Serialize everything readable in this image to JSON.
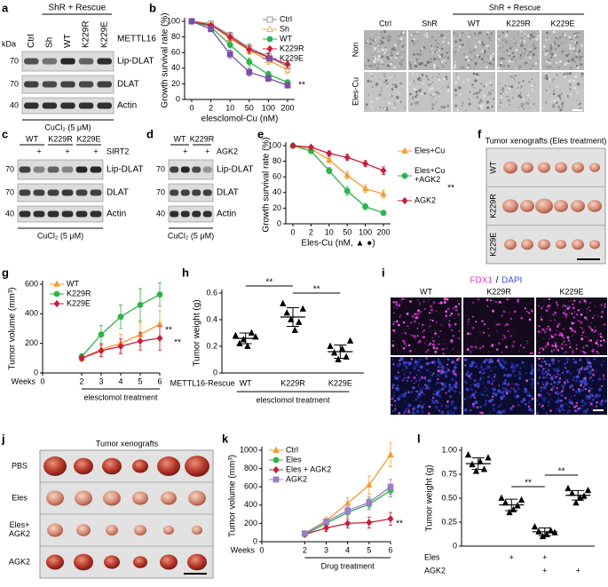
{
  "a": {
    "label": "a",
    "header": "ShR + Rescue",
    "lanes": [
      "Ctrl",
      "Sh",
      "WT",
      "K229R",
      "K229E"
    ],
    "lane_row": "METTL16",
    "kda": "kDa",
    "markers": [
      "70",
      "70",
      "40"
    ],
    "bands": [
      "Lip-DLAT",
      "DLAT",
      "Actin"
    ],
    "footer": "CuCl₂ (5 μM)"
  },
  "b_images": {
    "header": "ShR + Rescue",
    "columns": [
      "Ctrl",
      "ShR",
      "WT",
      "K229R",
      "K229E"
    ],
    "rows": [
      "Non",
      "Eles-Cu"
    ]
  },
  "c": {
    "label": "c",
    "groups": [
      "WT",
      "K229R",
      "K229E"
    ],
    "plus": [
      "+",
      "+",
      "+"
    ],
    "treatment": "SIRT2",
    "markers": [
      "70",
      "70",
      "40"
    ],
    "bands": [
      "Lip-DLAT",
      "DLAT",
      "Actin"
    ],
    "footer": "CuCl₂ (5 μM)"
  },
  "d": {
    "label": "d",
    "groups": [
      "WT",
      "K229R"
    ],
    "plus": [
      "+",
      "+"
    ],
    "treatment": "AGK2",
    "markers": [
      "70",
      "70",
      "40"
    ],
    "bands": [
      "Lip-DLAT",
      "DLAT",
      "Actin"
    ],
    "footer": "CuCl₂ (5 μM)"
  },
  "f": {
    "label": "f",
    "title": "Tumor xenografts (Eles treatment)",
    "rows": [
      "WT",
      "K229R",
      "K229E"
    ]
  },
  "i": {
    "label": "i",
    "title": [
      "FDX1",
      "/",
      "DAPI"
    ],
    "columns": [
      "WT",
      "K229R",
      "K229E"
    ]
  },
  "j": {
    "label": "j",
    "title": "Tumor xenografts",
    "rows": [
      "PBS",
      "Eles",
      "Eles+ AGK2",
      "AGK2"
    ]
  },
  "chart_data": [
    {
      "type": "line",
      "label": "b",
      "ylabel": "Growth survival rate (%)",
      "xlabel": "elesclomol-Cu (nM)",
      "categories": [
        "0",
        "2",
        "10",
        "50",
        "100",
        "200"
      ],
      "ylim": [
        0,
        100
      ],
      "yticks": [
        0,
        20,
        40,
        60,
        80,
        100
      ],
      "legend": "upper right",
      "annotations": [
        "**"
      ],
      "series": [
        {
          "name": "Ctrl",
          "color": "#888888",
          "marker": "square-open",
          "values": [
            100,
            97,
            82,
            66,
            55,
            42
          ],
          "errors": [
            1,
            2,
            4,
            5,
            5,
            6
          ]
        },
        {
          "name": "Sh",
          "color": "#f39c34",
          "marker": "triangle-open",
          "values": [
            100,
            96,
            78,
            63,
            50,
            38
          ],
          "errors": [
            1,
            2,
            4,
            5,
            5,
            5
          ]
        },
        {
          "name": "WT",
          "color": "#2db34a",
          "marker": "circle",
          "values": [
            100,
            93,
            70,
            48,
            32,
            22
          ],
          "errors": [
            1,
            3,
            4,
            5,
            4,
            3
          ]
        },
        {
          "name": "K229R",
          "color": "#c81e3c",
          "marker": "diamond",
          "values": [
            100,
            95,
            80,
            64,
            54,
            45
          ],
          "errors": [
            1,
            2,
            4,
            5,
            5,
            5
          ]
        },
        {
          "name": "K229E",
          "color": "#7b4fa8",
          "marker": "square",
          "values": [
            100,
            90,
            58,
            35,
            27,
            18
          ],
          "errors": [
            1,
            3,
            5,
            5,
            4,
            3
          ]
        }
      ]
    },
    {
      "type": "line",
      "label": "e",
      "ylabel": "Growth survival rate (%)",
      "xlabel": "Eles-Cu (nM, ▲ ●)",
      "categories": [
        "0",
        "2",
        "10",
        "50",
        "100",
        "200"
      ],
      "ylim": [
        0,
        100
      ],
      "yticks": [
        0,
        20,
        40,
        60,
        80,
        100
      ],
      "legend": "right",
      "annotations": [
        "**"
      ],
      "series": [
        {
          "name": "Eles+Cu",
          "color": "#f39c34",
          "marker": "triangle",
          "values": [
            100,
            96,
            82,
            62,
            45,
            38
          ],
          "errors": [
            1,
            2,
            4,
            5,
            5,
            5
          ]
        },
        {
          "name": "Eles+Cu +AGK2",
          "color": "#2db34a",
          "marker": "circle",
          "values": [
            100,
            93,
            68,
            42,
            22,
            14
          ],
          "errors": [
            1,
            2,
            4,
            5,
            4,
            3
          ]
        },
        {
          "name": "AGK2",
          "color": "#c81e3c",
          "marker": "diamond",
          "values": [
            100,
            98,
            90,
            85,
            77,
            68
          ],
          "errors": [
            1,
            2,
            3,
            4,
            4,
            5
          ]
        }
      ]
    },
    {
      "type": "line",
      "label": "g",
      "ylabel": "Tumor volume (mm³)",
      "x_prefix": "Weeks",
      "bracket": "elesclomol treatment",
      "x": [
        2,
        3,
        4,
        5,
        6
      ],
      "xlim": [
        0,
        6
      ],
      "xticks": [
        0,
        2,
        3,
        4,
        5,
        6
      ],
      "ylim": [
        0,
        600
      ],
      "yticks": [
        0,
        200,
        400,
        600
      ],
      "legend": "upper left",
      "annotations": [
        "**",
        "**"
      ],
      "series": [
        {
          "name": "WT",
          "color": "#f39c34",
          "marker": "triangle",
          "values": [
            100,
            160,
            200,
            260,
            330
          ],
          "errors": [
            20,
            40,
            60,
            80,
            90
          ]
        },
        {
          "name": "K229R",
          "color": "#2db34a",
          "marker": "circle",
          "values": [
            110,
            260,
            380,
            460,
            530
          ],
          "errors": [
            20,
            60,
            80,
            110,
            80
          ]
        },
        {
          "name": "K229E",
          "color": "#c81e3c",
          "marker": "diamond",
          "values": [
            100,
            150,
            180,
            215,
            235
          ],
          "errors": [
            15,
            40,
            50,
            60,
            80
          ]
        }
      ]
    },
    {
      "type": "dot",
      "label": "h",
      "ylabel": "Tumor weight (g)",
      "categories": [
        "WT",
        "K229R",
        "K229E"
      ],
      "row_label": "METTL16-Rescue",
      "bracket": "elesclomol treatment",
      "color": "#000000",
      "marker": "triangle",
      "values": [
        [
          0.28,
          0.22,
          0.25,
          0.2,
          0.3,
          0.27
        ],
        [
          0.52,
          0.45,
          0.4,
          0.32,
          0.38,
          0.48
        ],
        [
          0.2,
          0.15,
          0.1,
          0.18,
          0.12,
          0.24
        ]
      ],
      "means": [
        0.26,
        0.42,
        0.16
      ],
      "errors": [
        0.04,
        0.07,
        0.05
      ],
      "ylim": [
        0,
        0.6
      ],
      "yticks": [
        0,
        0.2,
        0.4,
        0.6
      ],
      "annotations": [
        "**",
        "**"
      ]
    },
    {
      "type": "line",
      "label": "k",
      "ylabel": "Tumor volume (mm³)",
      "x_prefix": "Weeks",
      "bracket": "Drug treatment",
      "x": [
        2,
        3,
        4,
        5,
        6
      ],
      "xlim": [
        0,
        6
      ],
      "xticks": [
        0,
        2,
        3,
        4,
        5,
        6
      ],
      "ylim": [
        0,
        1000
      ],
      "yticks": [
        0,
        200,
        400,
        600,
        800,
        1000
      ],
      "legend": "upper left",
      "annotations": [
        "**"
      ],
      "series": [
        {
          "name": "Ctrl",
          "color": "#f39c34",
          "marker": "triangle",
          "values": [
            90,
            230,
            420,
            620,
            950
          ],
          "errors": [
            15,
            40,
            60,
            100,
            130
          ]
        },
        {
          "name": "Eles",
          "color": "#2db34a",
          "marker": "circle",
          "values": [
            80,
            200,
            320,
            410,
            560
          ],
          "errors": [
            15,
            30,
            50,
            60,
            70
          ]
        },
        {
          "name": "Eles + AGK2",
          "color": "#c81e3c",
          "marker": "diamond",
          "values": [
            80,
            150,
            200,
            210,
            250
          ],
          "errors": [
            15,
            40,
            50,
            60,
            70
          ]
        },
        {
          "name": "AGK2",
          "color": "#9b7fc8",
          "marker": "square",
          "values": [
            90,
            220,
            340,
            430,
            600
          ],
          "errors": [
            15,
            30,
            40,
            60,
            80
          ]
        }
      ]
    },
    {
      "type": "dot",
      "label": "l",
      "ylabel": "Tumor weight (g)",
      "categories": [
        null,
        null,
        null,
        null
      ],
      "color": "#000000",
      "marker": "triangle",
      "conditions": [
        {
          "name": "Eles",
          "marks": [
            null,
            "+",
            "+",
            null
          ]
        },
        {
          "name": "AGK2",
          "marks": [
            null,
            null,
            "+",
            "+"
          ]
        }
      ],
      "values": [
        [
          0.95,
          0.85,
          0.78,
          0.88,
          0.8,
          0.92
        ],
        [
          0.5,
          0.45,
          0.35,
          0.38,
          0.42,
          0.48
        ],
        [
          0.2,
          0.15,
          0.1,
          0.12,
          0.16,
          0.14
        ],
        [
          0.6,
          0.55,
          0.45,
          0.5,
          0.52,
          0.58
        ]
      ],
      "means": [
        0.86,
        0.43,
        0.15,
        0.53
      ],
      "errors": [
        0.06,
        0.06,
        0.04,
        0.05
      ],
      "ylim": [
        0,
        1
      ],
      "yticks": [
        0,
        0.25,
        {
          "value": 0.5,
          "label": "0.50"
        },
        0.75,
        {
          "value": 1,
          "label": "1.00"
        }
      ],
      "annotations": [
        "**",
        "**"
      ]
    }
  ]
}
